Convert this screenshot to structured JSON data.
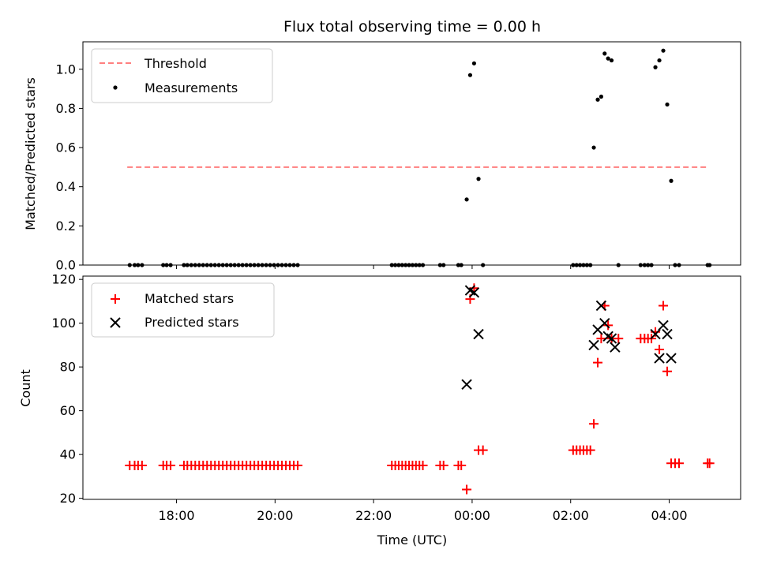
{
  "chart_data": [
    {
      "type": "scatter",
      "title": "Flux total observing time = 0.00 h",
      "xlabel": "",
      "ylabel": "Matched/Predicted stars",
      "x_unit": "time of day (UTC), fractional hours relative to 00:00",
      "xlim": [
        -7.9,
        5.45
      ],
      "ylim": [
        0,
        1.14
      ],
      "yticks": [
        "0.0",
        "0.2",
        "0.4",
        "0.6",
        "0.8",
        "1.0"
      ],
      "legend_position": "top-left",
      "legend": [
        "Threshold",
        "Measurements"
      ],
      "threshold": {
        "name": "Threshold",
        "value": 0.5,
        "x_range": [
          -7.0,
          4.8
        ],
        "color": "#ff7f7f",
        "style": "dashed"
      },
      "series": [
        {
          "name": "Measurements",
          "color": "#000000",
          "marker": "dot",
          "points": [
            [
              -6.95,
              0
            ],
            [
              -6.85,
              0
            ],
            [
              -6.78,
              0
            ],
            [
              -6.7,
              0
            ],
            [
              -6.27,
              0
            ],
            [
              -6.2,
              0
            ],
            [
              -6.12,
              0
            ],
            [
              -5.85,
              0
            ],
            [
              -5.78,
              0
            ],
            [
              -5.7,
              0
            ],
            [
              -5.62,
              0
            ],
            [
              -5.54,
              0
            ],
            [
              -5.46,
              0
            ],
            [
              -5.38,
              0
            ],
            [
              -5.3,
              0
            ],
            [
              -5.22,
              0
            ],
            [
              -5.14,
              0
            ],
            [
              -5.06,
              0
            ],
            [
              -4.98,
              0
            ],
            [
              -4.9,
              0
            ],
            [
              -4.82,
              0
            ],
            [
              -4.74,
              0
            ],
            [
              -4.66,
              0
            ],
            [
              -4.58,
              0
            ],
            [
              -4.5,
              0
            ],
            [
              -4.42,
              0
            ],
            [
              -4.34,
              0
            ],
            [
              -4.26,
              0
            ],
            [
              -4.18,
              0
            ],
            [
              -4.1,
              0
            ],
            [
              -4.02,
              0
            ],
            [
              -3.94,
              0
            ],
            [
              -3.86,
              0
            ],
            [
              -3.78,
              0
            ],
            [
              -3.7,
              0
            ],
            [
              -3.62,
              0
            ],
            [
              -3.54,
              0
            ],
            [
              -1.63,
              0
            ],
            [
              -1.56,
              0
            ],
            [
              -1.49,
              0
            ],
            [
              -1.42,
              0
            ],
            [
              -1.35,
              0
            ],
            [
              -1.28,
              0
            ],
            [
              -1.21,
              0
            ],
            [
              -1.14,
              0
            ],
            [
              -1.07,
              0
            ],
            [
              -1.0,
              0
            ],
            [
              -0.65,
              0
            ],
            [
              -0.58,
              0
            ],
            [
              -0.28,
              0
            ],
            [
              -0.22,
              0
            ],
            [
              -0.11,
              0.335
            ],
            [
              -0.04,
              0.97
            ],
            [
              0.04,
              1.03
            ],
            [
              0.13,
              0.44
            ],
            [
              0.22,
              0
            ],
            [
              2.05,
              0
            ],
            [
              2.12,
              0
            ],
            [
              2.19,
              0
            ],
            [
              2.26,
              0
            ],
            [
              2.33,
              0
            ],
            [
              2.4,
              0
            ],
            [
              2.47,
              0.6
            ],
            [
              2.55,
              0.845
            ],
            [
              2.62,
              0.86
            ],
            [
              2.69,
              1.08
            ],
            [
              2.76,
              1.055
            ],
            [
              2.83,
              1.045
            ],
            [
              2.97,
              0
            ],
            [
              3.42,
              0
            ],
            [
              3.5,
              0
            ],
            [
              3.57,
              0
            ],
            [
              3.64,
              0
            ],
            [
              3.72,
              1.01
            ],
            [
              3.8,
              1.045
            ],
            [
              3.88,
              1.095
            ],
            [
              3.96,
              0.82
            ],
            [
              4.04,
              0.43
            ],
            [
              4.12,
              0
            ],
            [
              4.2,
              0
            ],
            [
              4.78,
              0
            ],
            [
              4.82,
              0
            ]
          ]
        }
      ]
    },
    {
      "type": "scatter",
      "title": "",
      "xlabel": "Time (UTC)",
      "ylabel": "Count",
      "x_unit": "time of day (UTC), fractional hours relative to 00:00",
      "xlim": [
        -7.9,
        5.45
      ],
      "ylim": [
        19.5,
        121.5
      ],
      "yticks": [
        "20",
        "40",
        "60",
        "80",
        "100",
        "120"
      ],
      "xticks": [
        {
          "x": -6,
          "label": "18:00"
        },
        {
          "x": -4,
          "label": "20:00"
        },
        {
          "x": -2,
          "label": "22:00"
        },
        {
          "x": 0,
          "label": "00:00"
        },
        {
          "x": 2,
          "label": "02:00"
        },
        {
          "x": 4,
          "label": "04:00"
        }
      ],
      "legend_position": "top-left",
      "legend": [
        "Matched stars",
        "Predicted stars"
      ],
      "series": [
        {
          "name": "Matched stars",
          "color": "#ff0000",
          "marker": "plus",
          "points": [
            [
              -6.95,
              35
            ],
            [
              -6.85,
              35
            ],
            [
              -6.78,
              35
            ],
            [
              -6.7,
              35
            ],
            [
              -6.27,
              35
            ],
            [
              -6.2,
              35
            ],
            [
              -6.12,
              35
            ],
            [
              -5.85,
              35
            ],
            [
              -5.78,
              35
            ],
            [
              -5.7,
              35
            ],
            [
              -5.62,
              35
            ],
            [
              -5.54,
              35
            ],
            [
              -5.46,
              35
            ],
            [
              -5.38,
              35
            ],
            [
              -5.3,
              35
            ],
            [
              -5.22,
              35
            ],
            [
              -5.14,
              35
            ],
            [
              -5.06,
              35
            ],
            [
              -4.98,
              35
            ],
            [
              -4.9,
              35
            ],
            [
              -4.82,
              35
            ],
            [
              -4.74,
              35
            ],
            [
              -4.66,
              35
            ],
            [
              -4.58,
              35
            ],
            [
              -4.5,
              35
            ],
            [
              -4.42,
              35
            ],
            [
              -4.34,
              35
            ],
            [
              -4.26,
              35
            ],
            [
              -4.18,
              35
            ],
            [
              -4.1,
              35
            ],
            [
              -4.02,
              35
            ],
            [
              -3.94,
              35
            ],
            [
              -3.86,
              35
            ],
            [
              -3.78,
              35
            ],
            [
              -3.7,
              35
            ],
            [
              -3.62,
              35
            ],
            [
              -3.54,
              35
            ],
            [
              -1.63,
              35
            ],
            [
              -1.56,
              35
            ],
            [
              -1.49,
              35
            ],
            [
              -1.42,
              35
            ],
            [
              -1.35,
              35
            ],
            [
              -1.28,
              35
            ],
            [
              -1.21,
              35
            ],
            [
              -1.14,
              35
            ],
            [
              -1.07,
              35
            ],
            [
              -1.0,
              35
            ],
            [
              -0.65,
              35
            ],
            [
              -0.58,
              35
            ],
            [
              -0.28,
              35
            ],
            [
              -0.22,
              35
            ],
            [
              -0.11,
              24
            ],
            [
              -0.04,
              111
            ],
            [
              0.04,
              116
            ],
            [
              0.13,
              42
            ],
            [
              0.22,
              42
            ],
            [
              2.05,
              42
            ],
            [
              2.12,
              42
            ],
            [
              2.19,
              42
            ],
            [
              2.26,
              42
            ],
            [
              2.33,
              42
            ],
            [
              2.4,
              42
            ],
            [
              2.47,
              54
            ],
            [
              2.55,
              82
            ],
            [
              2.62,
              93
            ],
            [
              2.69,
              108
            ],
            [
              2.76,
              99
            ],
            [
              2.83,
              93
            ],
            [
              2.97,
              93
            ],
            [
              3.42,
              93
            ],
            [
              3.5,
              93
            ],
            [
              3.57,
              93
            ],
            [
              3.64,
              93
            ],
            [
              3.72,
              96
            ],
            [
              3.8,
              88
            ],
            [
              3.88,
              108
            ],
            [
              3.96,
              78
            ],
            [
              4.04,
              36
            ],
            [
              4.12,
              36
            ],
            [
              4.2,
              36
            ],
            [
              4.78,
              36
            ],
            [
              4.82,
              36
            ]
          ]
        },
        {
          "name": "Predicted stars",
          "color": "#000000",
          "marker": "x",
          "points": [
            [
              -0.11,
              72
            ],
            [
              -0.04,
              115
            ],
            [
              0.04,
              114
            ],
            [
              0.13,
              95
            ],
            [
              2.47,
              90
            ],
            [
              2.55,
              97
            ],
            [
              2.62,
              108
            ],
            [
              2.69,
              100
            ],
            [
              2.76,
              94
            ],
            [
              2.83,
              93
            ],
            [
              2.9,
              89
            ],
            [
              3.72,
              95
            ],
            [
              3.8,
              84
            ],
            [
              3.88,
              99
            ],
            [
              3.96,
              95
            ],
            [
              4.04,
              84
            ]
          ]
        }
      ]
    }
  ]
}
